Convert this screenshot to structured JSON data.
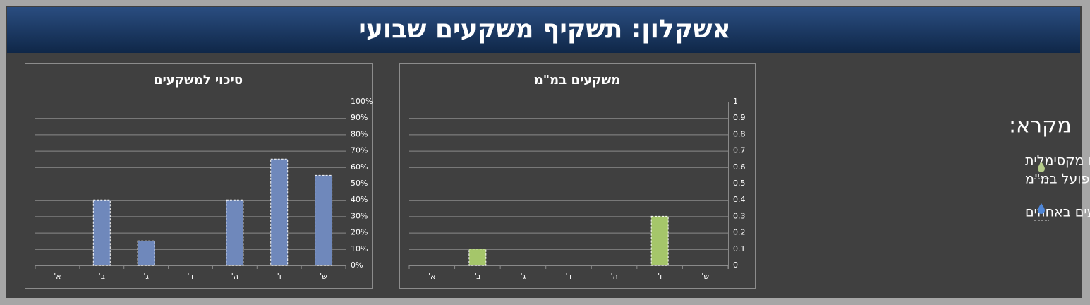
{
  "title": "אשקלון: תשקיף משקעים שבועי",
  "legend": {
    "title": "מקרא:",
    "items": [
      {
        "lines": [
          "תחזית לכמות משקעים מקסימלית",
          "במ\"מ / משקעים בפועל במ\"מ"
        ]
      },
      {
        "lines": [
          "סיכוי מקסימלי למשקעים באחוזים"
        ]
      }
    ]
  },
  "chart_data": [
    {
      "type": "bar",
      "title": "סיכוי למשקעים",
      "categories": [
        "א'",
        "ב'",
        "ג'",
        "ד'",
        "ה'",
        "ו'",
        "ש'"
      ],
      "values": [
        0,
        40,
        15,
        0,
        40,
        65,
        55
      ],
      "color": "#6f88bb",
      "ylim": [
        0,
        100
      ],
      "yticks": [
        {
          "value": 0,
          "label": "0%"
        },
        {
          "value": 10,
          "label": "10%"
        },
        {
          "value": 20,
          "label": "20%"
        },
        {
          "value": 30,
          "label": "30%"
        },
        {
          "value": 40,
          "label": "40%"
        },
        {
          "value": 50,
          "label": "50%"
        },
        {
          "value": 60,
          "label": "60%"
        },
        {
          "value": 70,
          "label": "70%"
        },
        {
          "value": 80,
          "label": "80%"
        },
        {
          "value": 90,
          "label": "90%"
        },
        {
          "value": 100,
          "label": "100%"
        }
      ],
      "grid": true
    },
    {
      "type": "bar",
      "title": "משקעים במ\"מ",
      "categories": [
        "א'",
        "ב'",
        "ג'",
        "ד'",
        "ה'",
        "ו'",
        "ש'"
      ],
      "values": [
        0,
        0.1,
        0,
        0,
        0,
        0.3,
        0
      ],
      "color": "#a5c66a",
      "ylim": [
        0,
        1
      ],
      "yticks": [
        0,
        0.1,
        0.2,
        0.3,
        0.4,
        0.5,
        0.6,
        0.7,
        0.8,
        0.9,
        1
      ],
      "grid": true
    }
  ]
}
